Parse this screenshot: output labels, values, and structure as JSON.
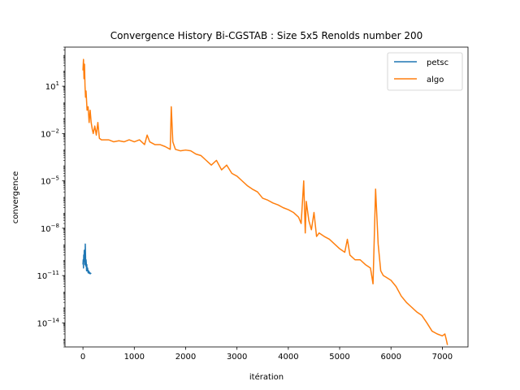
{
  "chart_data": {
    "type": "line",
    "title": "Convergence History Bi-CGSTAB : Size 5x5 Renolds number 200",
    "xlabel": "itération",
    "ylabel": "convergence",
    "xscale": "linear",
    "yscale": "log",
    "xlim": [
      -350,
      7500
    ],
    "ylim": [
      3e-16,
      3000.0
    ],
    "xticks": [
      0,
      1000,
      2000,
      3000,
      4000,
      5000,
      6000,
      7000
    ],
    "xtick_labels": [
      "0",
      "1000",
      "2000",
      "3000",
      "4000",
      "5000",
      "6000",
      "7000"
    ],
    "yticks": [
      10,
      0.01,
      1e-05,
      1e-08,
      1e-11,
      1e-14
    ],
    "ytick_labels": [
      {
        "base": "10",
        "exp": "1"
      },
      {
        "base": "10",
        "exp": "−2"
      },
      {
        "base": "10",
        "exp": "−5"
      },
      {
        "base": "10",
        "exp": "−8"
      },
      {
        "base": "10",
        "exp": "−11"
      },
      {
        "base": "10",
        "exp": "−14"
      }
    ],
    "grid": false,
    "legend": {
      "placement": "upper right"
    },
    "series": [
      {
        "name": "petsc",
        "color": "#1f77b4",
        "x": [
          0,
          5,
          10,
          15,
          20,
          25,
          30,
          35,
          40,
          45,
          50,
          55,
          60,
          65,
          70,
          75,
          80,
          90,
          100,
          110,
          120,
          130,
          140,
          150,
          160
        ],
        "y": [
          5e-11,
          1e-10,
          3e-11,
          2e-10,
          8e-11,
          4e-10,
          1e-10,
          2e-10,
          5e-11,
          1e-09,
          2e-10,
          4e-11,
          1e-10,
          6e-11,
          2e-11,
          5e-11,
          2e-11,
          3e-11,
          1.5e-11,
          2e-11,
          1.4e-11,
          1.6e-11,
          1.3e-11,
          1.4e-11,
          1.3e-11
        ]
      },
      {
        "name": "algo",
        "color": "#ff7f0e",
        "x": [
          0,
          10,
          20,
          30,
          40,
          50,
          60,
          80,
          100,
          120,
          140,
          160,
          180,
          200,
          230,
          260,
          290,
          320,
          360,
          400,
          450,
          500,
          600,
          700,
          800,
          900,
          1000,
          1100,
          1200,
          1250,
          1300,
          1400,
          1500,
          1600,
          1700,
          1720,
          1750,
          1800,
          1900,
          2000,
          2100,
          2200,
          2300,
          2400,
          2500,
          2600,
          2700,
          2800,
          2900,
          3000,
          3100,
          3200,
          3300,
          3400,
          3500,
          3600,
          3700,
          3800,
          3900,
          4000,
          4100,
          4200,
          4250,
          4300,
          4330,
          4350,
          4400,
          4450,
          4500,
          4550,
          4600,
          4700,
          4800,
          4900,
          5000,
          5100,
          5150,
          5200,
          5300,
          5400,
          5500,
          5600,
          5650,
          5700,
          5750,
          5800,
          5850,
          5900,
          6000,
          6100,
          6200,
          6300,
          6400,
          6500,
          6600,
          6700,
          6800,
          6900,
          7000,
          7050,
          7080,
          7100
        ],
        "y": [
          100,
          500,
          30,
          250,
          10,
          2,
          5,
          0.3,
          0.5,
          0.05,
          0.3,
          0.05,
          0.02,
          0.01,
          0.03,
          0.008,
          0.05,
          0.005,
          0.004,
          0.004,
          0.004,
          0.004,
          0.003,
          0.0035,
          0.003,
          0.004,
          0.003,
          0.004,
          0.002,
          0.008,
          0.003,
          0.002,
          0.002,
          0.0015,
          0.001,
          0.5,
          0.003,
          0.001,
          0.0008,
          0.0009,
          0.0008,
          0.0005,
          0.0004,
          0.0002,
          0.0001,
          0.0002,
          5e-05,
          0.0001,
          3e-05,
          2e-05,
          1e-05,
          5e-06,
          3e-06,
          2e-06,
          8e-07,
          6e-07,
          4e-07,
          3e-07,
          2e-07,
          1.5e-07,
          1e-07,
          5e-08,
          2e-08,
          1e-05,
          5e-09,
          5e-07,
          3e-08,
          8e-09,
          1e-07,
          3e-09,
          5e-09,
          3e-09,
          2e-09,
          1e-09,
          5e-10,
          3e-10,
          2e-09,
          2e-10,
          1e-10,
          1e-10,
          5e-11,
          3e-11,
          3e-12,
          3e-06,
          1e-09,
          2e-11,
          1e-11,
          8e-12,
          5e-12,
          2e-12,
          5e-13,
          2e-13,
          1e-13,
          5e-14,
          3e-14,
          1e-14,
          3e-15,
          2e-15,
          1.5e-15,
          2e-15,
          8e-16,
          4e-16
        ]
      }
    ]
  }
}
